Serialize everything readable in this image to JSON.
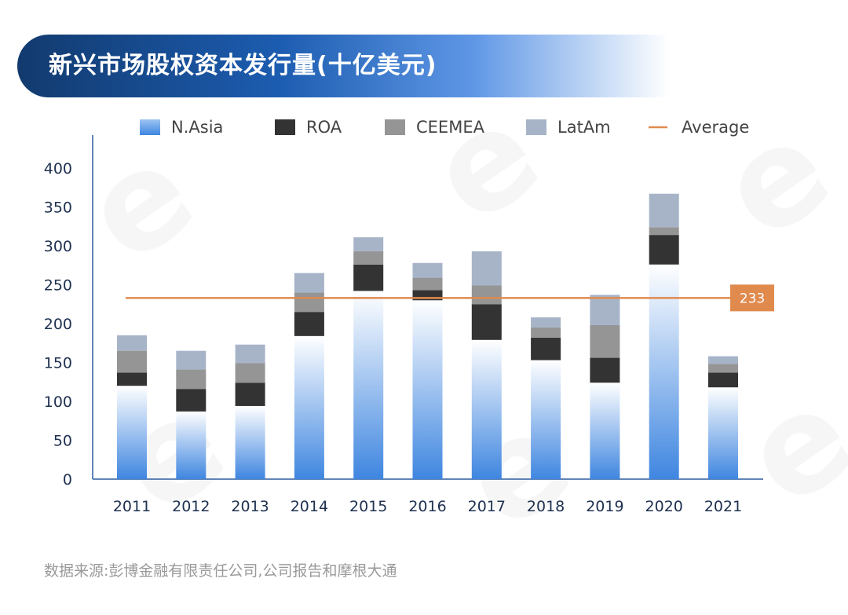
{
  "title": "新兴市场股权资本发行量(十亿美元)",
  "source": "数据来源:彭博金融有限责任公司,公司报告和摩根大通",
  "colors": {
    "N.Asia": "#3f86e0",
    "ROA": "#333333",
    "CEEMEA": "#959595",
    "LatAm": "#a7b4c8",
    "Average": "#e08a4e",
    "axis": "#2f5d9e",
    "tick_text": "#1e3050"
  },
  "chart_data": {
    "type": "bar",
    "stacked": true,
    "categories": [
      "2011",
      "2012",
      "2013",
      "2014",
      "2015",
      "2016",
      "2017",
      "2018",
      "2019",
      "2020",
      "2021"
    ],
    "series": [
      {
        "name": "N.Asia",
        "values": [
          120,
          87,
          94,
          184,
          242,
          230,
          179,
          153,
          124,
          276,
          118
        ]
      },
      {
        "name": "ROA",
        "values": [
          17,
          29,
          30,
          31,
          34,
          13,
          46,
          29,
          32,
          38,
          19
        ]
      },
      {
        "name": "CEEMEA",
        "values": [
          28,
          25,
          25,
          25,
          17,
          16,
          24,
          13,
          42,
          10,
          11
        ]
      },
      {
        "name": "LatAm",
        "values": [
          20,
          24,
          24,
          25,
          18,
          19,
          44,
          13,
          39,
          43,
          10
        ]
      }
    ],
    "average": {
      "name": "Average",
      "value": 233,
      "label": "233"
    },
    "ylim": [
      0,
      400
    ],
    "yticks": [
      0,
      50,
      100,
      150,
      200,
      250,
      300,
      350,
      400
    ],
    "legend": [
      "N.Asia",
      "ROA",
      "CEEMEA",
      "LatAm",
      "Average"
    ],
    "legend_position": "top",
    "grid": false
  }
}
